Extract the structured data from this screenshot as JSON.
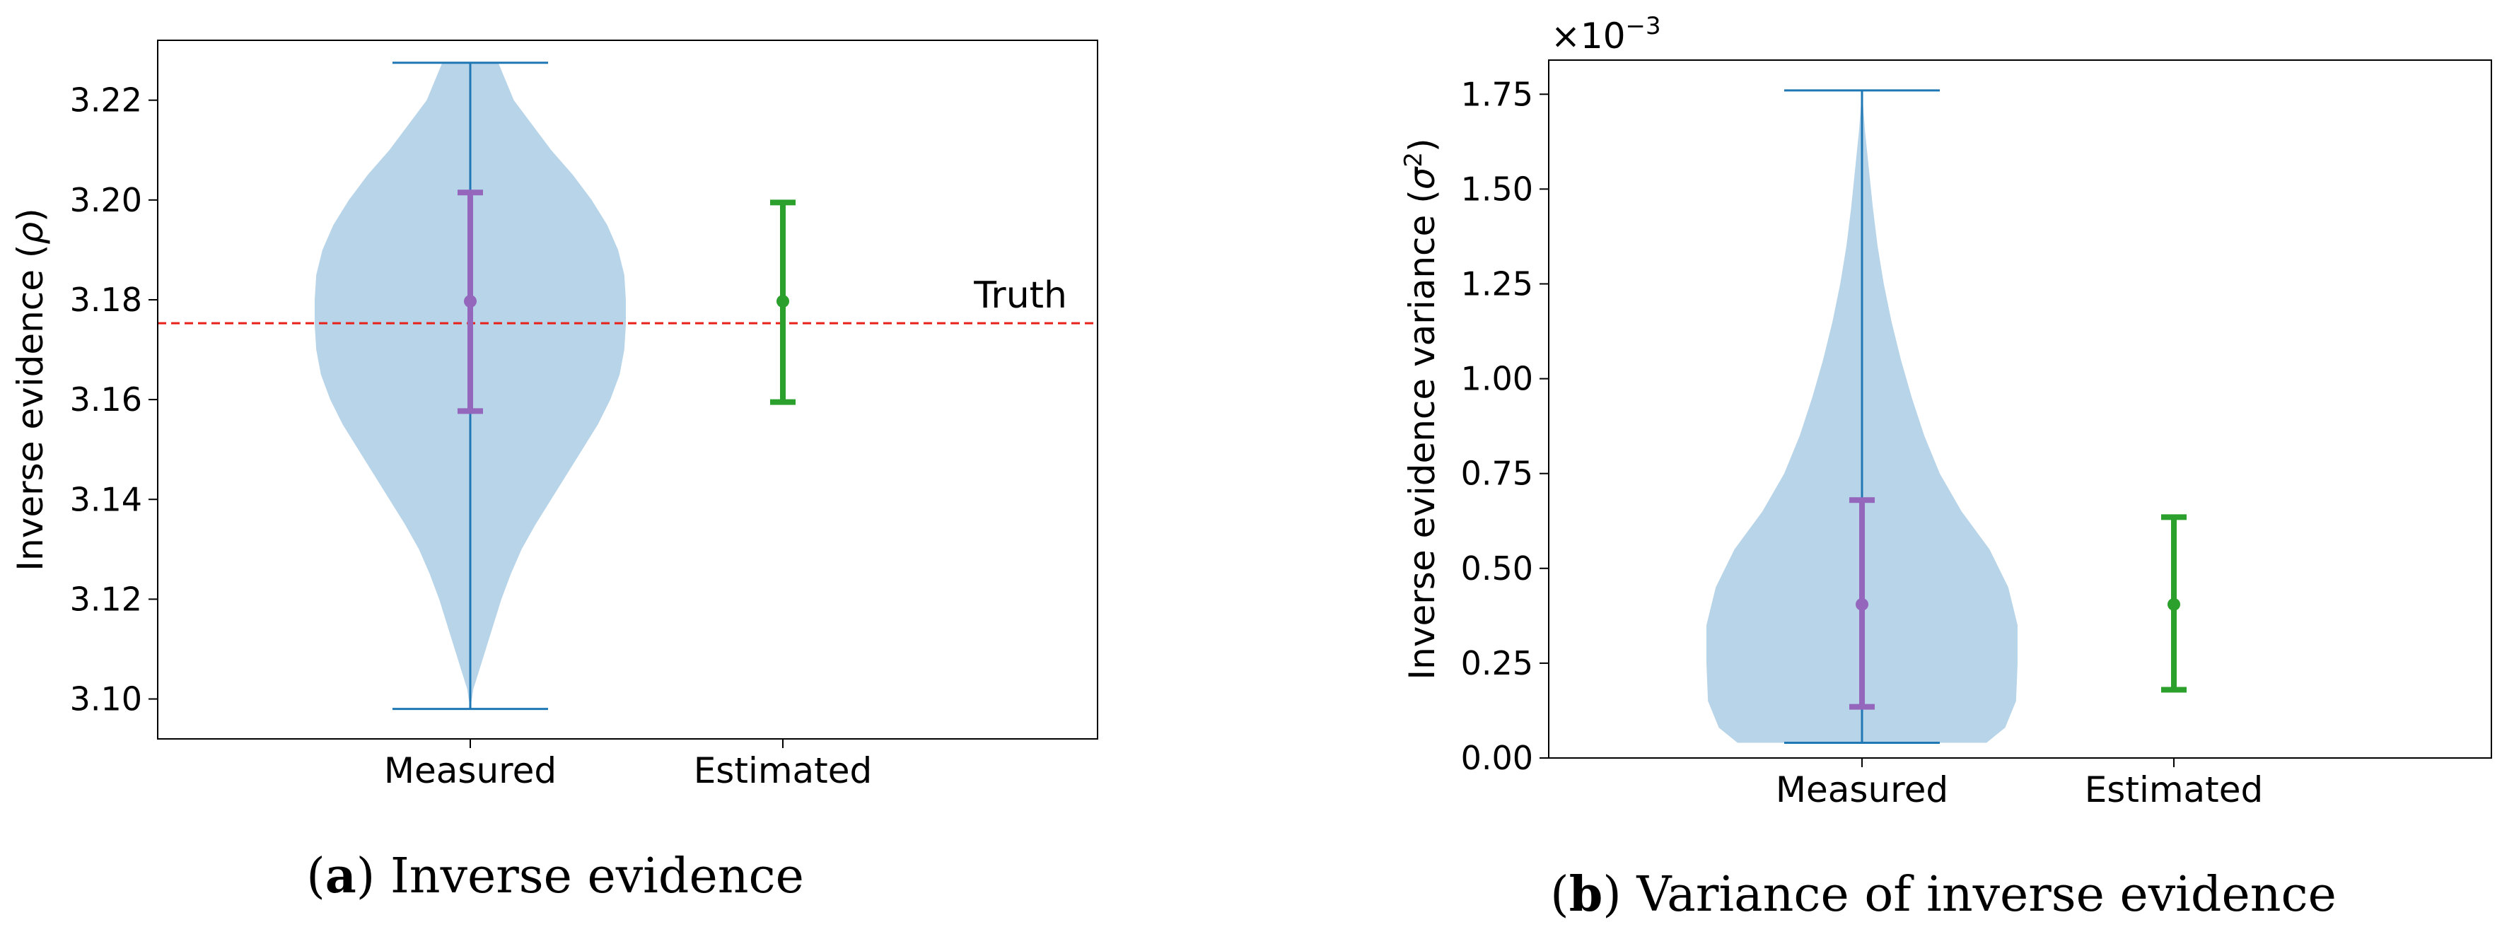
{
  "chart_data": [
    {
      "type": "violin",
      "panel": "a",
      "caption_letter": "a",
      "caption_text": "Inverse evidence",
      "categories": [
        "Measured",
        "Estimated"
      ],
      "ylabel_main": "Inverse evidence (",
      "ylabel_symbol": "ρ",
      "ylabel_end": ")",
      "ylim": [
        3.092,
        3.232
      ],
      "yticks": [
        3.1,
        3.12,
        3.14,
        3.16,
        3.18,
        3.2,
        3.22
      ],
      "ytick_labels": [
        "3.10",
        "3.12",
        "3.14",
        "3.16",
        "3.18",
        "3.20",
        "3.22"
      ],
      "violin": {
        "category": "Measured",
        "min": 3.098,
        "max": 3.2275,
        "density": [
          [
            3.098,
            0.0
          ],
          [
            3.102,
            0.02
          ],
          [
            3.106,
            0.06
          ],
          [
            3.11,
            0.1
          ],
          [
            3.115,
            0.15
          ],
          [
            3.12,
            0.2
          ],
          [
            3.125,
            0.26
          ],
          [
            3.13,
            0.33
          ],
          [
            3.135,
            0.42
          ],
          [
            3.14,
            0.52
          ],
          [
            3.145,
            0.62
          ],
          [
            3.15,
            0.72
          ],
          [
            3.155,
            0.82
          ],
          [
            3.16,
            0.9
          ],
          [
            3.165,
            0.96
          ],
          [
            3.17,
            0.99
          ],
          [
            3.175,
            1.0
          ],
          [
            3.18,
            1.0
          ],
          [
            3.185,
            0.99
          ],
          [
            3.19,
            0.95
          ],
          [
            3.195,
            0.88
          ],
          [
            3.2,
            0.78
          ],
          [
            3.205,
            0.66
          ],
          [
            3.21,
            0.52
          ],
          [
            3.215,
            0.4
          ],
          [
            3.22,
            0.28
          ],
          [
            3.2275,
            0.18
          ]
        ],
        "color": "#b8d4e8",
        "line_color": "#1f77b4"
      },
      "errorbars": [
        {
          "category": "Measured",
          "mean": 3.1797,
          "lower": 3.1577,
          "upper": 3.2015,
          "color": "#9467bd"
        },
        {
          "category": "Estimated",
          "mean": 3.1797,
          "lower": 3.1595,
          "upper": 3.1995,
          "color": "#2ca02c"
        }
      ],
      "reference_line": {
        "value": 3.1753,
        "label": "Truth",
        "color": "#e8201a"
      }
    },
    {
      "type": "violin",
      "panel": "b",
      "caption_letter": "b",
      "caption_text": "Variance of inverse evidence",
      "categories": [
        "Measured",
        "Estimated"
      ],
      "ylabel_main": "Inverse evidence variance (",
      "ylabel_symbol": "σ",
      "ylabel_sup": "2",
      "ylabel_end": ")",
      "offset_base": "×10",
      "offset_exp": "−3",
      "ylim": [
        0.0,
        1.84
      ],
      "yticks": [
        0.0,
        0.25,
        0.5,
        0.75,
        1.0,
        1.25,
        1.5,
        1.75
      ],
      "ytick_labels": [
        "0.00",
        "0.25",
        "0.50",
        "0.75",
        "1.00",
        "1.25",
        "1.50",
        "1.75"
      ],
      "violin": {
        "category": "Measured",
        "min": 0.04,
        "max": 1.76,
        "density": [
          [
            0.04,
            0.8
          ],
          [
            0.08,
            0.92
          ],
          [
            0.15,
            0.99
          ],
          [
            0.25,
            1.0
          ],
          [
            0.35,
            1.0
          ],
          [
            0.45,
            0.94
          ],
          [
            0.55,
            0.82
          ],
          [
            0.65,
            0.64
          ],
          [
            0.75,
            0.5
          ],
          [
            0.85,
            0.4
          ],
          [
            0.95,
            0.32
          ],
          [
            1.05,
            0.25
          ],
          [
            1.15,
            0.19
          ],
          [
            1.25,
            0.14
          ],
          [
            1.35,
            0.1
          ],
          [
            1.45,
            0.07
          ],
          [
            1.55,
            0.045
          ],
          [
            1.65,
            0.02
          ],
          [
            1.76,
            0.0
          ]
        ],
        "color": "#b8d4e8",
        "line_color": "#1f77b4"
      },
      "errorbars": [
        {
          "category": "Measured",
          "mean": 0.405,
          "lower": 0.135,
          "upper": 0.68,
          "color": "#9467bd"
        },
        {
          "category": "Estimated",
          "mean": 0.405,
          "lower": 0.18,
          "upper": 0.635,
          "color": "#2ca02c"
        }
      ]
    }
  ]
}
